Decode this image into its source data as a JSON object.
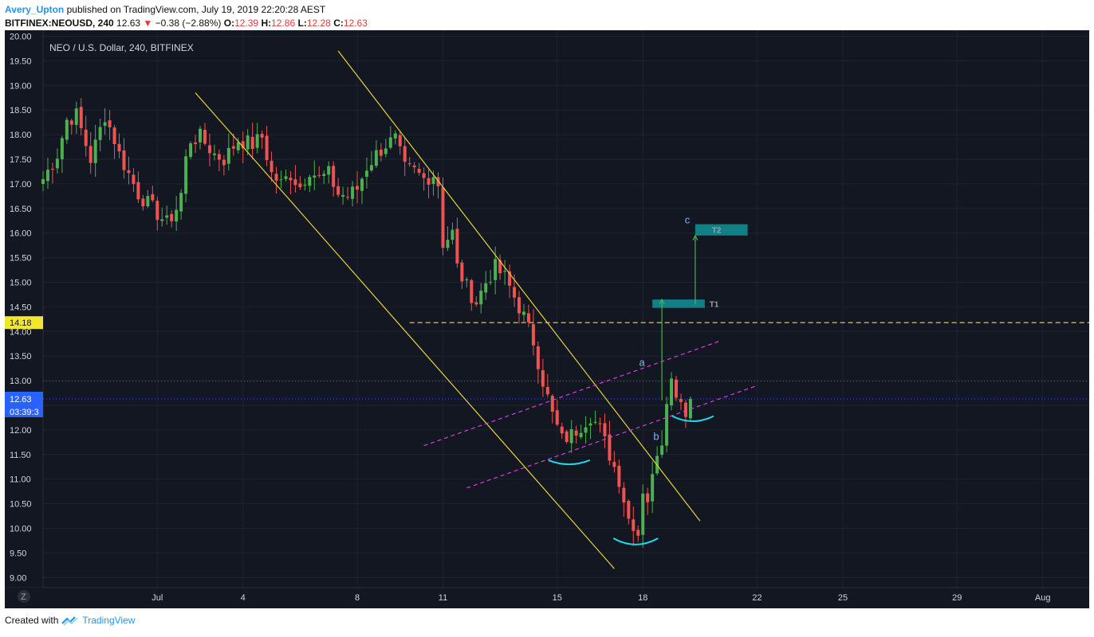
{
  "header": {
    "author": "Avery_Upton",
    "published_text": "published on TradingView.com, July 19, 2019 22:20:28 AEST",
    "symbol": "BITFINEX:NEOUSD, 240",
    "last": "12.63",
    "change_icon": "triangle-down-icon",
    "change": "−0.38 (−2.88%)",
    "o_label": "O:",
    "o_value": "12.39",
    "h_label": "H:",
    "h_value": "12.86",
    "l_label": "L:",
    "l_value": "12.28",
    "c_label": "C:",
    "c_value": "12.63"
  },
  "legend_title": "NEO / U.S. Dollar, 240, BITFINEX",
  "price_labels": {
    "hline": "14.18",
    "last": "12.63",
    "countdown": "03:39:3"
  },
  "annotations": {
    "a": "a",
    "b": "b",
    "c": "c",
    "t1": "T1",
    "t2": "T2"
  },
  "timezone_button": "Z",
  "footer": {
    "created": "Created with",
    "brand": "TradingView",
    "logo_icon": "tradingview-logo-icon"
  },
  "colors": {
    "background": "#131722",
    "grid": "#1e2330",
    "up": "#4caf50",
    "down": "#ef5350",
    "channel": "#e6d33a",
    "dashed_channel": "#d83de0",
    "target_box": "#127f86",
    "arc": "#20d8ea",
    "hline": "#f0e72c",
    "last_price": "#2962ff",
    "axis_text": "#d1d4dc"
  },
  "chart_data": {
    "type": "candlestick",
    "title": "NEO / U.S. Dollar, 240, BITFINEX",
    "ylim": [
      9.0,
      20.0
    ],
    "y_ticks": [
      "20.00",
      "19.50",
      "19.00",
      "18.50",
      "18.00",
      "17.50",
      "17.00",
      "16.50",
      "16.00",
      "15.50",
      "15.00",
      "14.50",
      "14.00",
      "13.50",
      "13.00",
      "12.50",
      "12.00",
      "11.50",
      "11.00",
      "10.50",
      "10.00",
      "9.50",
      "9.00"
    ],
    "x_ticks": [
      {
        "label": "Jul",
        "idx": 24
      },
      {
        "label": "4",
        "idx": 42
      },
      {
        "label": "8",
        "idx": 66
      },
      {
        "label": "11",
        "idx": 84
      },
      {
        "label": "15",
        "idx": 108
      },
      {
        "label": "18",
        "idx": 126
      },
      {
        "label": "22",
        "idx": 150
      },
      {
        "label": "25",
        "idx": 168
      },
      {
        "label": "29",
        "idx": 192
      },
      {
        "label": "Aug",
        "idx": 210
      }
    ],
    "grid": true,
    "last_price": 12.63,
    "horizontal_line": 14.18,
    "dotted_level": 12.99,
    "waypoints": [
      [
        0,
        17.1
      ],
      [
        3,
        17.6
      ],
      [
        5,
        18.3
      ],
      [
        7,
        18.4
      ],
      [
        10,
        17.5
      ],
      [
        13,
        18.4
      ],
      [
        15,
        17.9
      ],
      [
        16,
        17.6
      ],
      [
        18,
        17.2
      ],
      [
        20,
        16.8
      ],
      [
        22,
        16.6
      ],
      [
        24,
        16.4
      ],
      [
        26,
        16.2
      ],
      [
        28,
        16.5
      ],
      [
        29,
        16.8
      ],
      [
        30,
        17.5
      ],
      [
        31,
        17.9
      ],
      [
        33,
        17.95
      ],
      [
        36,
        17.6
      ],
      [
        38,
        17.5
      ],
      [
        41,
        17.9
      ],
      [
        44,
        17.8
      ],
      [
        46,
        17.95
      ],
      [
        48,
        17.2
      ],
      [
        50,
        17.0
      ],
      [
        52,
        17.2
      ],
      [
        54,
        16.95
      ],
      [
        56,
        17.3
      ],
      [
        58,
        17.1
      ],
      [
        60,
        17.2
      ],
      [
        62,
        16.8
      ],
      [
        64,
        16.75
      ],
      [
        66,
        16.9
      ],
      [
        68,
        17.35
      ],
      [
        70,
        17.6
      ],
      [
        72,
        17.8
      ],
      [
        74,
        17.9
      ],
      [
        76,
        17.3
      ],
      [
        78,
        17.25
      ],
      [
        80,
        17.1
      ],
      [
        82,
        17.2
      ],
      [
        83,
        17.0
      ],
      [
        84,
        15.8
      ],
      [
        86,
        16.0
      ],
      [
        87,
        15.3
      ],
      [
        89,
        14.9
      ],
      [
        91,
        14.6
      ],
      [
        93,
        15.0
      ],
      [
        95,
        15.3
      ],
      [
        97,
        15.1
      ],
      [
        99,
        14.7
      ],
      [
        101,
        14.3
      ],
      [
        103,
        13.8
      ],
      [
        105,
        13.0
      ],
      [
        107,
        12.3
      ],
      [
        109,
        11.8
      ],
      [
        111,
        11.9
      ],
      [
        113,
        12.1
      ],
      [
        115,
        12.3
      ],
      [
        117,
        12.0
      ],
      [
        119,
        11.5
      ],
      [
        121,
        11.0
      ],
      [
        123,
        10.2
      ],
      [
        124,
        10.1
      ],
      [
        125,
        9.9
      ],
      [
        126,
        10.8
      ],
      [
        127,
        10.6
      ],
      [
        128,
        11.0
      ],
      [
        129,
        11.6
      ],
      [
        130,
        11.8
      ],
      [
        131,
        12.7
      ],
      [
        132,
        13.0
      ],
      [
        133,
        12.8
      ],
      [
        134,
        12.6
      ],
      [
        135,
        12.4
      ],
      [
        136,
        12.63
      ]
    ],
    "channel_lines": [
      [
        [
          32,
          18.85
        ],
        [
          120,
          9.18
        ]
      ],
      [
        [
          62,
          19.7
        ],
        [
          138,
          10.15
        ]
      ]
    ],
    "dashed_lines": [
      [
        [
          80,
          11.68
        ],
        [
          142,
          13.8
        ]
      ],
      [
        [
          89,
          10.82
        ],
        [
          150,
          12.9
        ]
      ]
    ],
    "targets": [
      {
        "label": "T1",
        "range": [
          14.48,
          14.65
        ],
        "from": [
          128,
          14.7
        ]
      },
      {
        "label": "T2",
        "range": [
          15.95,
          16.18
        ],
        "from": [
          137,
          14.5
        ]
      }
    ],
    "arrows": [
      [
        [
          130,
          12.6
        ],
        [
          130,
          14.65
        ]
      ],
      [
        [
          137,
          14.55
        ],
        [
          137,
          15.95
        ]
      ]
    ]
  }
}
